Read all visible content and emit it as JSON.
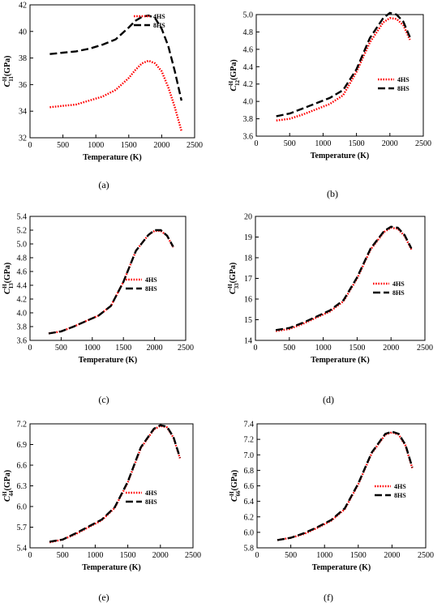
{
  "colors": {
    "series_4hs": "#ff0000",
    "series_8hs": "#000000",
    "axis": "#000000"
  },
  "chart_data": [
    {
      "type": "line",
      "caption": "(a)",
      "ylabel_main": "C",
      "ylabel_sup": "H",
      "ylabel_sub": "11",
      "ylabel_unit": "(GPa)",
      "xlabel": "Temperature (K)",
      "xlim": [
        0,
        2500
      ],
      "ylim": [
        32,
        42
      ],
      "xticks": [
        0,
        500,
        1000,
        1500,
        2000,
        2500
      ],
      "yticks": [
        32,
        34,
        36,
        38,
        40,
        42
      ],
      "legend_position": "top-right",
      "series": [
        {
          "name": "4HS",
          "x": [
            300,
            500,
            700,
            900,
            1100,
            1300,
            1500,
            1600,
            1700,
            1800,
            1900,
            2000,
            2100,
            2200,
            2300
          ],
          "y": [
            34.3,
            34.4,
            34.5,
            34.8,
            35.1,
            35.6,
            36.5,
            37.1,
            37.6,
            37.8,
            37.6,
            37.0,
            35.8,
            34.3,
            32.5
          ]
        },
        {
          "name": "8HS",
          "x": [
            300,
            500,
            700,
            900,
            1100,
            1300,
            1500,
            1600,
            1700,
            1800,
            1900,
            2000,
            2100,
            2200,
            2300
          ],
          "y": [
            38.3,
            38.4,
            38.5,
            38.7,
            39.0,
            39.4,
            40.3,
            40.8,
            41.1,
            41.2,
            41.0,
            40.2,
            38.9,
            37.0,
            34.8
          ]
        }
      ]
    },
    {
      "type": "line",
      "caption": "(b)",
      "ylabel_main": "C",
      "ylabel_sup": "H",
      "ylabel_sub": "12",
      "ylabel_unit": "(GPa)",
      "xlabel": "Temperature (K)",
      "xlim": [
        0,
        2500
      ],
      "ylim": [
        3.6,
        5.0
      ],
      "xticks": [
        0,
        500,
        1000,
        1500,
        2000,
        2500
      ],
      "yticks": [
        3.6,
        3.8,
        4.0,
        4.2,
        4.4,
        4.6,
        4.8,
        5.0
      ],
      "legend_position": "middle-right",
      "series": [
        {
          "name": "4HS",
          "x": [
            300,
            500,
            700,
            900,
            1100,
            1300,
            1500,
            1700,
            1900,
            2000,
            2100,
            2200,
            2300
          ],
          "y": [
            3.78,
            3.8,
            3.85,
            3.91,
            3.97,
            4.07,
            4.34,
            4.68,
            4.91,
            4.96,
            4.95,
            4.88,
            4.71
          ]
        },
        {
          "name": "8HS",
          "x": [
            300,
            500,
            700,
            900,
            1100,
            1300,
            1500,
            1700,
            1900,
            2000,
            2100,
            2200,
            2300
          ],
          "y": [
            3.83,
            3.86,
            3.92,
            3.98,
            4.04,
            4.13,
            4.37,
            4.73,
            4.96,
            5.02,
            5.0,
            4.92,
            4.74
          ]
        }
      ]
    },
    {
      "type": "line",
      "caption": "(c)",
      "ylabel_main": "C",
      "ylabel_sup": "H",
      "ylabel_sub": "13",
      "ylabel_unit": "(GPa)",
      "xlabel": "Temperature (K)",
      "xlim": [
        0,
        2500
      ],
      "ylim": [
        3.6,
        5.4
      ],
      "xticks": [
        0,
        500,
        1000,
        1500,
        2000,
        2500
      ],
      "yticks": [
        3.6,
        3.8,
        4.0,
        4.2,
        4.4,
        4.6,
        4.8,
        5.0,
        5.2,
        5.4
      ],
      "legend_position": "middle-right",
      "series": [
        {
          "name": "4HS",
          "x": [
            300,
            500,
            700,
            900,
            1100,
            1300,
            1500,
            1700,
            1900,
            2000,
            2100,
            2200,
            2300
          ],
          "y": [
            3.7,
            3.73,
            3.8,
            3.88,
            3.96,
            4.1,
            4.45,
            4.9,
            5.13,
            5.19,
            5.19,
            5.12,
            4.95
          ]
        },
        {
          "name": "8HS",
          "x": [
            300,
            500,
            700,
            900,
            1100,
            1300,
            1500,
            1700,
            1900,
            2000,
            2100,
            2200,
            2300
          ],
          "y": [
            3.7,
            3.73,
            3.8,
            3.88,
            3.96,
            4.1,
            4.45,
            4.9,
            5.13,
            5.2,
            5.2,
            5.12,
            4.96
          ]
        }
      ]
    },
    {
      "type": "line",
      "caption": "(d)",
      "ylabel_main": "C",
      "ylabel_sup": "H",
      "ylabel_sub": "33",
      "ylabel_unit": "(GPa)",
      "xlabel": "Temperature (K)",
      "xlim": [
        0,
        2500
      ],
      "ylim": [
        14,
        20
      ],
      "xticks": [
        0,
        500,
        1000,
        1500,
        2000,
        2500
      ],
      "yticks": [
        14,
        15,
        16,
        17,
        18,
        19,
        20
      ],
      "legend_position": "middle-right",
      "series": [
        {
          "name": "4HS",
          "x": [
            300,
            500,
            700,
            900,
            1100,
            1300,
            1500,
            1700,
            1900,
            2000,
            2100,
            2200,
            2300
          ],
          "y": [
            14.45,
            14.55,
            14.8,
            15.1,
            15.4,
            15.9,
            17.0,
            18.4,
            19.25,
            19.45,
            19.4,
            19.05,
            18.4
          ]
        },
        {
          "name": "8HS",
          "x": [
            300,
            500,
            700,
            900,
            1100,
            1300,
            1500,
            1700,
            1900,
            2000,
            2100,
            2200,
            2300
          ],
          "y": [
            14.5,
            14.6,
            14.85,
            15.15,
            15.45,
            15.95,
            17.05,
            18.45,
            19.3,
            19.5,
            19.45,
            19.1,
            18.45
          ]
        }
      ]
    },
    {
      "type": "line",
      "caption": "(e)",
      "ylabel_main": "C",
      "ylabel_sup": "H",
      "ylabel_sub": "44",
      "ylabel_unit": "(GPa)",
      "xlabel": "Temperature (K)",
      "xlim": [
        0,
        2500
      ],
      "ylim": [
        5.4,
        7.2
      ],
      "xticks": [
        0,
        500,
        1000,
        1500,
        2000,
        2500
      ],
      "yticks": [
        5.4,
        5.7,
        6.0,
        6.3,
        6.6,
        6.9,
        7.2
      ],
      "legend_position": "middle-right",
      "series": [
        {
          "name": "4HS",
          "x": [
            300,
            500,
            700,
            900,
            1100,
            1300,
            1500,
            1700,
            1900,
            2000,
            2100,
            2200,
            2300
          ],
          "y": [
            5.48,
            5.52,
            5.6,
            5.7,
            5.8,
            5.98,
            6.35,
            6.85,
            7.12,
            7.17,
            7.15,
            7.0,
            6.7
          ]
        },
        {
          "name": "8HS",
          "x": [
            300,
            500,
            700,
            900,
            1100,
            1300,
            1500,
            1700,
            1900,
            2000,
            2100,
            2200,
            2300
          ],
          "y": [
            5.49,
            5.52,
            5.61,
            5.71,
            5.81,
            5.99,
            6.36,
            6.86,
            7.13,
            7.18,
            7.16,
            7.01,
            6.71
          ]
        }
      ]
    },
    {
      "type": "line",
      "caption": "(f)",
      "ylabel_main": "C",
      "ylabel_sup": "H",
      "ylabel_sub": "66",
      "ylabel_unit": "(GPa)",
      "xlabel": "Temperature (K)",
      "xlim": [
        0,
        2500
      ],
      "ylim": [
        5.8,
        7.4
      ],
      "xticks": [
        0,
        500,
        1000,
        1500,
        2000,
        2500
      ],
      "yticks": [
        5.8,
        6.0,
        6.2,
        6.4,
        6.6,
        6.8,
        7.0,
        7.2,
        7.4
      ],
      "legend_position": "middle-right",
      "series": [
        {
          "name": "4HS",
          "x": [
            300,
            500,
            700,
            900,
            1100,
            1300,
            1500,
            1700,
            1900,
            2000,
            2100,
            2200,
            2300
          ],
          "y": [
            5.9,
            5.93,
            5.98,
            6.06,
            6.15,
            6.3,
            6.62,
            7.02,
            7.26,
            7.29,
            7.26,
            7.12,
            6.83
          ]
        },
        {
          "name": "8HS",
          "x": [
            300,
            500,
            700,
            900,
            1100,
            1300,
            1500,
            1700,
            1900,
            2000,
            2100,
            2200,
            2300
          ],
          "y": [
            5.9,
            5.93,
            5.99,
            6.07,
            6.16,
            6.31,
            6.63,
            7.03,
            7.27,
            7.3,
            7.27,
            7.13,
            6.84
          ]
        }
      ]
    }
  ]
}
